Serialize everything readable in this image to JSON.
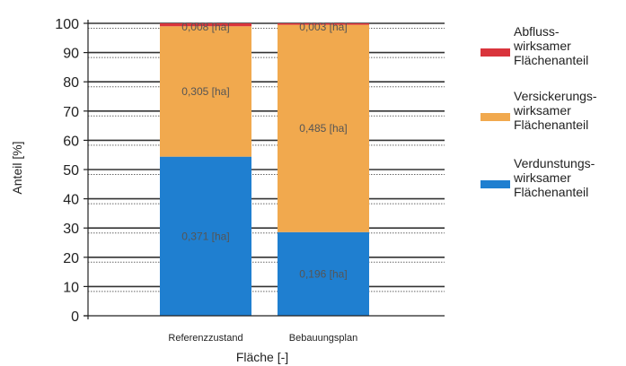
{
  "chart_data": {
    "type": "bar",
    "stacked": true,
    "xlabel": "Fläche [-]",
    "ylabel": "Anteil [%]",
    "ylim": [
      0,
      100
    ],
    "yticks": [
      0,
      10,
      20,
      30,
      40,
      50,
      60,
      70,
      80,
      90,
      100
    ],
    "categories": [
      "Referenzzustand",
      "Bebauungsplan"
    ],
    "series": [
      {
        "key": "verdunstung",
        "name": "Verdunstungs-wirksamer Flächenanteil",
        "legend_lines": [
          "Verdunstungs-",
          "wirksamer",
          "Flächenanteil"
        ],
        "color": "#1f7fd0",
        "values": [
          54.4,
          28.6
        ],
        "labels": [
          "0,371 [ha]",
          "0,196 [ha]"
        ]
      },
      {
        "key": "versickerung",
        "name": "Versickerungs-wirksamer Flächenanteil",
        "legend_lines": [
          "Versickerungs-",
          "wirksamer",
          "Flächenanteil"
        ],
        "color": "#f1a94e",
        "values": [
          44.6,
          70.9
        ],
        "labels": [
          "0,305 [ha]",
          "0,485 [ha]"
        ]
      },
      {
        "key": "abfluss",
        "name": "Abfluss-wirksamer Flächenanteil",
        "legend_lines": [
          "Abfluss-",
          "wirksamer",
          "Flächenanteil"
        ],
        "color": "#d9343c",
        "values": [
          1.0,
          0.5
        ],
        "labels": [
          "0,008 [ha]",
          "0,003 [ha]"
        ]
      }
    ],
    "legend_position": "right",
    "grid": true
  }
}
